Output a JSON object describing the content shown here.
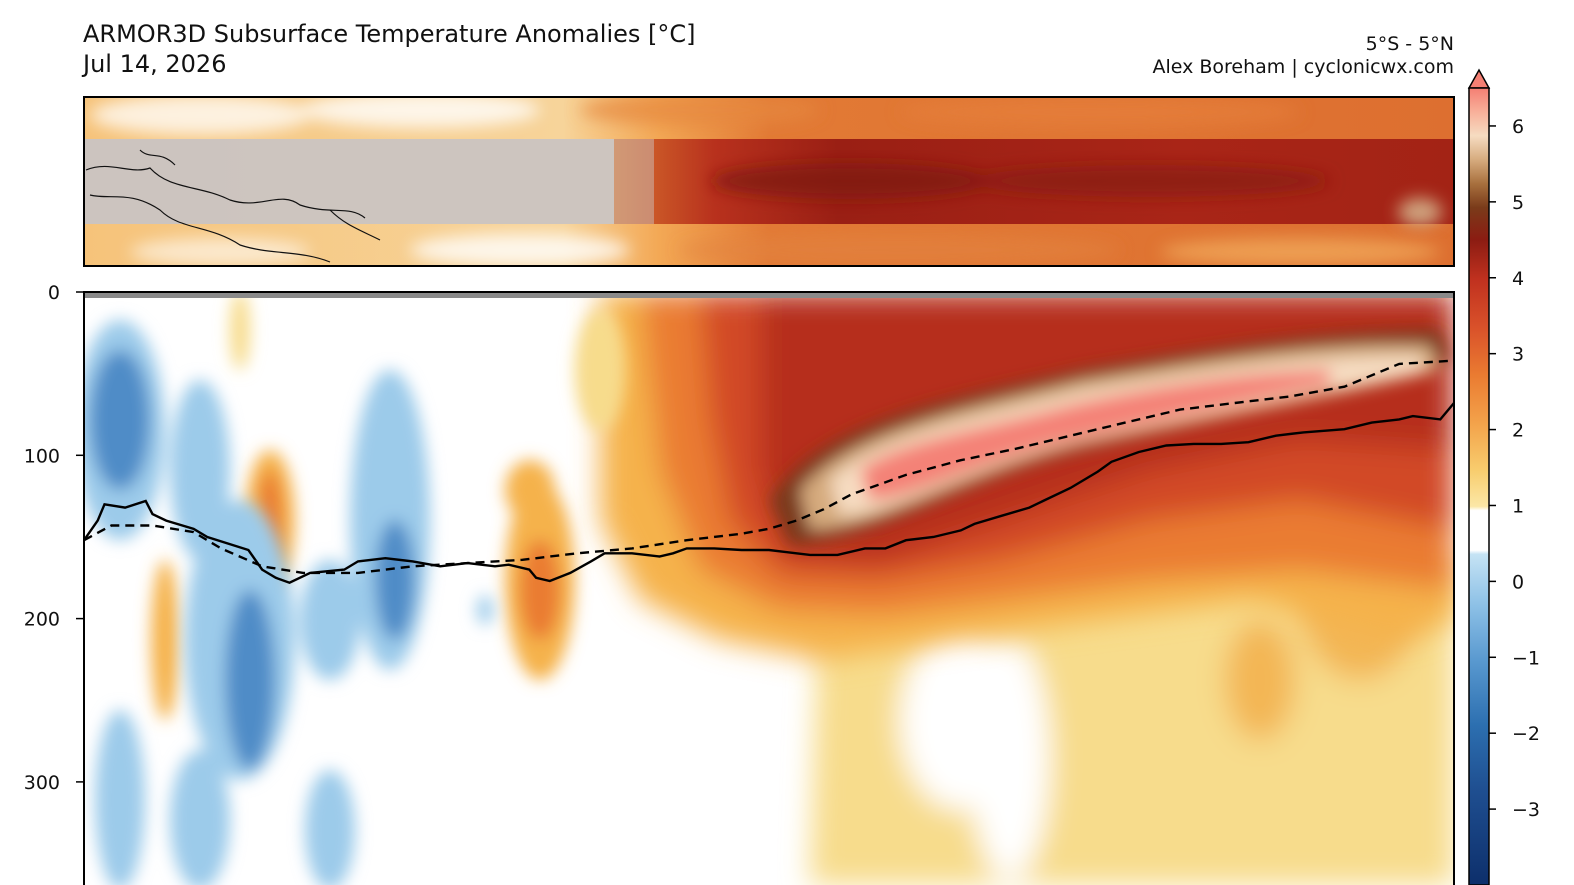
{
  "header": {
    "title": "ARMOR3D Subsurface Temperature Anomalies [°C]",
    "date": "Jul 14, 2026",
    "region": "5°S - 5°N",
    "credit": "Alex Boreham | cyclonicwx.com"
  },
  "colors": {
    "neg3": "#2c5fa3",
    "neg2": "#4f8cc7",
    "neg1": "#9ccbea",
    "zero": "#ffffff",
    "pos05": "#f9df8a",
    "pos1": "#f5b24c",
    "pos2": "#e8732a",
    "pos3": "#c9381f",
    "pos4": "#8f1c12",
    "pos5": "#e7c6a3",
    "pos6": "#f48277",
    "land_mask": "#cccccc",
    "surface_bar": "#8a8a8a"
  },
  "chart_data": [
    {
      "type": "heatmap",
      "title": "ARMOR3D Subsurface Temperature Anomalies [°C]",
      "subtitle": "Jul 14, 2026",
      "panel": "map",
      "region_label": "5°S - 5°N"
    },
    {
      "type": "heatmap",
      "panel": "depth-section",
      "xlabel": "",
      "ylabel": "",
      "y_ticks": [
        0,
        100,
        200,
        300
      ],
      "ylim": [
        0,
        360
      ],
      "y_inverted": true,
      "x_domain": [
        0,
        1
      ],
      "lines": [
        {
          "style": "solid",
          "points": [
            [
              0,
              152
            ],
            [
              0.01,
              140
            ],
            [
              0.015,
              130
            ],
            [
              0.03,
              132
            ],
            [
              0.045,
              128
            ],
            [
              0.05,
              136
            ],
            [
              0.06,
              140
            ],
            [
              0.08,
              145
            ],
            [
              0.09,
              150
            ],
            [
              0.12,
              158
            ],
            [
              0.13,
              170
            ],
            [
              0.14,
              175
            ],
            [
              0.15,
              178
            ],
            [
              0.165,
              172
            ],
            [
              0.19,
              170
            ],
            [
              0.2,
              165
            ],
            [
              0.22,
              163
            ],
            [
              0.24,
              165
            ],
            [
              0.26,
              168
            ],
            [
              0.28,
              166
            ],
            [
              0.3,
              168
            ],
            [
              0.31,
              167
            ],
            [
              0.325,
              170
            ],
            [
              0.33,
              175
            ],
            [
              0.34,
              177
            ],
            [
              0.355,
              172
            ],
            [
              0.37,
              165
            ],
            [
              0.38,
              160
            ],
            [
              0.4,
              160
            ],
            [
              0.42,
              162
            ],
            [
              0.43,
              160
            ],
            [
              0.44,
              157
            ],
            [
              0.46,
              157
            ],
            [
              0.48,
              158
            ],
            [
              0.5,
              158
            ],
            [
              0.52,
              160
            ],
            [
              0.53,
              161
            ],
            [
              0.55,
              161
            ],
            [
              0.57,
              157
            ],
            [
              0.585,
              157
            ],
            [
              0.6,
              152
            ],
            [
              0.62,
              150
            ],
            [
              0.64,
              146
            ],
            [
              0.65,
              142
            ],
            [
              0.67,
              137
            ],
            [
              0.69,
              132
            ],
            [
              0.7,
              128
            ],
            [
              0.72,
              120
            ],
            [
              0.74,
              110
            ],
            [
              0.75,
              104
            ],
            [
              0.77,
              98
            ],
            [
              0.79,
              94
            ],
            [
              0.81,
              93
            ],
            [
              0.83,
              93
            ],
            [
              0.85,
              92
            ],
            [
              0.87,
              88
            ],
            [
              0.89,
              86
            ],
            [
              0.92,
              84
            ],
            [
              0.94,
              80
            ],
            [
              0.96,
              78
            ],
            [
              0.97,
              76
            ],
            [
              0.99,
              78
            ],
            [
              1,
              68
            ]
          ]
        },
        {
          "style": "dashed",
          "points": [
            [
              0,
              152
            ],
            [
              0.02,
              143
            ],
            [
              0.05,
              143
            ],
            [
              0.08,
              147
            ],
            [
              0.1,
              157
            ],
            [
              0.13,
              168
            ],
            [
              0.16,
              172
            ],
            [
              0.2,
              172
            ],
            [
              0.24,
              168
            ],
            [
              0.28,
              166
            ],
            [
              0.32,
              164
            ],
            [
              0.36,
              160
            ],
            [
              0.4,
              157
            ],
            [
              0.44,
              152
            ],
            [
              0.48,
              148
            ],
            [
              0.5,
              145
            ],
            [
              0.52,
              140
            ],
            [
              0.54,
              133
            ],
            [
              0.56,
              124
            ],
            [
              0.6,
              112
            ],
            [
              0.64,
              103
            ],
            [
              0.68,
              96
            ],
            [
              0.72,
              88
            ],
            [
              0.76,
              80
            ],
            [
              0.8,
              72
            ],
            [
              0.84,
              68
            ],
            [
              0.88,
              64
            ],
            [
              0.92,
              58
            ],
            [
              0.96,
              44
            ],
            [
              1,
              42
            ]
          ]
        }
      ]
    },
    {
      "type": "colorbar",
      "ticks": [
        6,
        5,
        4,
        3,
        2,
        1,
        0,
        -1,
        -2,
        -3
      ],
      "tick_labels": [
        "6",
        "5",
        "4",
        "3",
        "2",
        "1",
        "0",
        "−1",
        "−2",
        "−3"
      ],
      "range": [
        -4,
        6.5
      ],
      "extend": "both"
    }
  ]
}
